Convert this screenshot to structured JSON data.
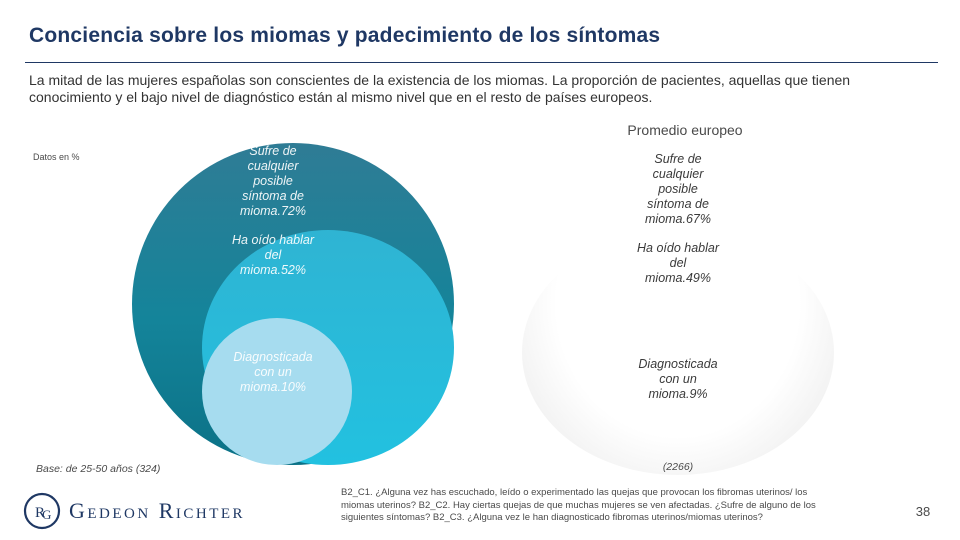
{
  "title": "Conciencia sobre los miomas y padecimiento de los síntomas",
  "intro": "La mitad de las mujeres españolas son conscientes de la existencia de los miomas. La proporción de pacientes, aquellas que tienen conocimiento y el bajo nivel de diagnóstico están al mismo nivel que en el resto de países europeos.",
  "units_note": "Datos en %",
  "europe_heading": "Promedio europeo",
  "spain": {
    "outer_label": "Sufre de cualquier posible síntoma de mioma.72%",
    "mid_label": "Ha oído hablar del mioma.52%",
    "inner_label": "Diagnosticada con un mioma.10%",
    "base": "Base: de 25-50 años (324)"
  },
  "europe": {
    "outer_label": "Sufre de cualquier posible síntoma de mioma.67%",
    "mid_label": "Ha oído hablar del mioma.49%",
    "inner_label": "Diagnosticada con un mioma.9%",
    "base": "(2266)"
  },
  "colors": {
    "outer": "#14849a",
    "mid": "#22c1e0",
    "inner": "#a6dcef",
    "title": "#1f3864"
  },
  "logo": {
    "text": "Gedeon Richter",
    "mark": "RG"
  },
  "footnote": "B2_C1. ¿Alguna vez has escuchado, leído o experimentado las quejas que provocan los fibromas uterinos/ los miomas uterinos? B2_C2. Hay ciertas quejas de que muchas mujeres se ven afectadas. ¿Sufre de alguno de los siguientes síntomas? B2_C3. ¿Alguna vez le han diagnosticado fibromas uterinos/miomas uterinos?",
  "page_number": "38"
}
